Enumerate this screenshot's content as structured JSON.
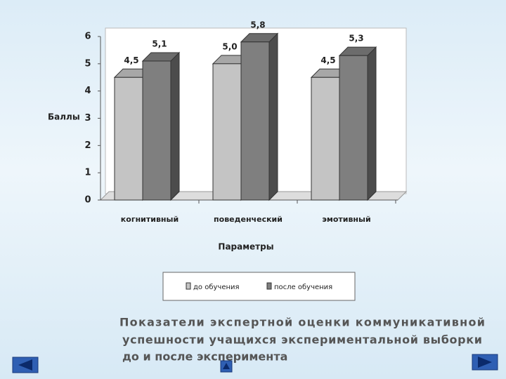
{
  "chart_data": {
    "type": "bar3d",
    "categories": [
      "когнитивный",
      "поведенческий",
      "эмотивный"
    ],
    "series": [
      {
        "name": "до обучения",
        "color": "#c4c4c4",
        "values": [
          4.5,
          5.0,
          4.5
        ],
        "value_labels": [
          "4,5",
          "5,0",
          "4,5"
        ]
      },
      {
        "name": "после обучения",
        "color": "#7f7f7f",
        "values": [
          5.1,
          5.8,
          5.3
        ],
        "value_labels": [
          "5,1",
          "5,8",
          "5,3"
        ]
      }
    ],
    "ylabel": "Баллы",
    "xlabel": "Параметры",
    "ylim": [
      0,
      6
    ],
    "yticks": [
      0,
      1,
      2,
      3,
      4,
      5,
      6
    ],
    "grid": false,
    "legend": "bottom"
  },
  "caption": [
    "Показатели экспертной оценки коммуникативной",
    "успешности учащихся экспериментальной выборки",
    "до и после эксперимента"
  ]
}
